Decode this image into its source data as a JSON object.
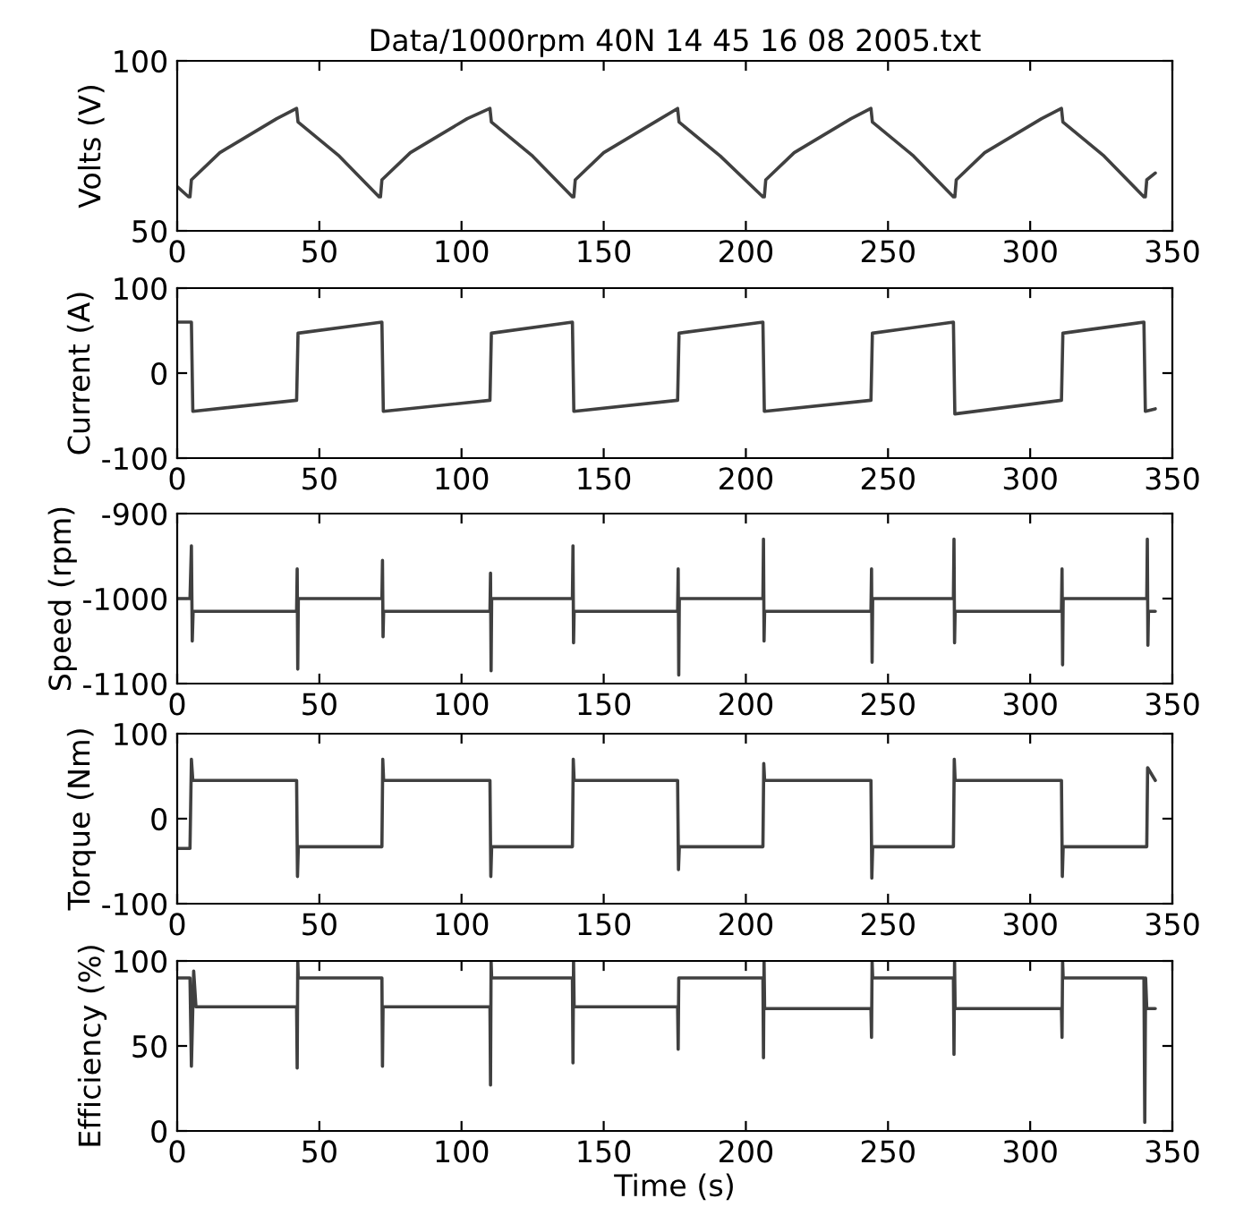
{
  "chart_data": [
    {
      "type": "line",
      "title": "Data/1000rpm 40N 14 45 16 08 2005.txt",
      "ylabel": "Volts (V)",
      "xlim": [
        0,
        350
      ],
      "ylim": [
        50,
        100
      ],
      "xticks": [
        0,
        50,
        100,
        150,
        200,
        250,
        300,
        350
      ],
      "yticks": [
        50,
        100
      ],
      "line_style": "solid",
      "series": [
        {
          "color": "#404040",
          "x": [
            0,
            4,
            4.5,
            5,
            15,
            25,
            35,
            42,
            42.5,
            57,
            71,
            71.5,
            72,
            82,
            92,
            102,
            110,
            110.5,
            125,
            139,
            139.5,
            140,
            150,
            160,
            170,
            176,
            176.5,
            191,
            206,
            206.5,
            207,
            217,
            227,
            237,
            244,
            244.5,
            259,
            273,
            273.5,
            274,
            284,
            294,
            304,
            311,
            311.5,
            326,
            340,
            340.5,
            341,
            344
          ],
          "values": [
            63,
            60,
            60,
            65,
            73,
            78,
            83,
            86,
            82,
            72,
            60,
            60,
            65,
            73,
            78,
            83,
            86,
            82,
            72,
            60,
            60,
            65,
            73,
            78,
            83,
            86,
            82,
            72,
            60,
            60,
            65,
            73,
            78,
            83,
            86,
            82,
            72,
            60,
            60,
            65,
            73,
            78,
            83,
            86,
            82,
            72,
            60,
            60,
            65,
            67
          ]
        }
      ]
    },
    {
      "type": "line",
      "ylabel": "Current (A)",
      "xlim": [
        0,
        350
      ],
      "ylim": [
        -100,
        100
      ],
      "xticks": [
        0,
        50,
        100,
        150,
        200,
        250,
        300,
        350
      ],
      "yticks": [
        -100,
        0,
        100
      ],
      "line_style": "solid",
      "series": [
        {
          "color": "#404040",
          "x": [
            0,
            5,
            5.5,
            42,
            42.5,
            72,
            72.5,
            110,
            110.5,
            139,
            139.5,
            176,
            176.5,
            206,
            206.5,
            244,
            244.5,
            273,
            273.5,
            311,
            311.5,
            340,
            340.5,
            344
          ],
          "values": [
            60,
            60,
            -45,
            -32,
            47,
            60,
            -45,
            -32,
            47,
            60,
            -45,
            -32,
            47,
            60,
            -45,
            -32,
            47,
            60,
            -48,
            -32,
            47,
            60,
            -45,
            -42
          ]
        }
      ]
    },
    {
      "type": "line",
      "ylabel": "Speed (rpm)",
      "xlim": [
        0,
        350
      ],
      "ylim": [
        -1100,
        -900
      ],
      "xticks": [
        0,
        50,
        100,
        150,
        200,
        250,
        300,
        350
      ],
      "yticks": [
        -1100,
        -1000,
        -900
      ],
      "line_style": "solid",
      "series": [
        {
          "color": "#404040",
          "x": [
            0,
            4.5,
            5,
            5.3,
            5.6,
            42,
            42.2,
            42.4,
            42.6,
            72,
            72.2,
            72.4,
            72.6,
            110,
            110.2,
            110.4,
            110.6,
            139,
            139.2,
            139.4,
            139.6,
            176,
            176.2,
            176.4,
            176.6,
            206,
            206.2,
            206.4,
            206.6,
            244,
            244.2,
            244.4,
            244.6,
            273,
            273.2,
            273.4,
            273.6,
            311,
            311.2,
            311.4,
            311.6,
            341,
            341.2,
            341.4,
            341.6,
            344
          ],
          "values": [
            -1000,
            -1000,
            -938,
            -1050,
            -1015,
            -1015,
            -965,
            -1083,
            -1000,
            -1000,
            -955,
            -1045,
            -1015,
            -1015,
            -970,
            -1085,
            -1000,
            -1000,
            -938,
            -1052,
            -1015,
            -1015,
            -965,
            -1090,
            -1000,
            -1000,
            -930,
            -1050,
            -1015,
            -1015,
            -965,
            -1075,
            -1000,
            -1000,
            -930,
            -1052,
            -1015,
            -1015,
            -965,
            -1078,
            -1000,
            -1000,
            -930,
            -1055,
            -1015,
            -1015
          ]
        }
      ]
    },
    {
      "type": "line",
      "ylabel": "Torque (Nm)",
      "xlim": [
        0,
        350
      ],
      "ylim": [
        -100,
        100
      ],
      "xticks": [
        0,
        50,
        100,
        150,
        200,
        250,
        300,
        350
      ],
      "yticks": [
        -100,
        0,
        100
      ],
      "line_style": "solid",
      "series": [
        {
          "color": "#404040",
          "x": [
            0,
            4.5,
            5,
            5.5,
            42,
            42.3,
            42.6,
            72,
            72.3,
            72.6,
            110,
            110.3,
            110.6,
            139,
            139.3,
            139.6,
            176,
            176.3,
            176.6,
            206,
            206.3,
            206.6,
            244,
            244.3,
            244.6,
            273,
            273.3,
            273.6,
            311,
            311.3,
            311.6,
            341,
            341.3,
            344
          ],
          "values": [
            -35,
            -35,
            70,
            45,
            45,
            -68,
            -33,
            -33,
            70,
            45,
            45,
            -68,
            -33,
            -33,
            70,
            45,
            45,
            -60,
            -33,
            -33,
            65,
            45,
            45,
            -70,
            -33,
            -33,
            70,
            45,
            45,
            -68,
            -33,
            -33,
            60,
            45
          ]
        }
      ]
    },
    {
      "type": "line",
      "ylabel": "Efficiency (%)",
      "xlabel": "Time (s)",
      "xlim": [
        0,
        350
      ],
      "ylim": [
        0,
        100
      ],
      "xticks": [
        0,
        50,
        100,
        150,
        200,
        250,
        300,
        350
      ],
      "yticks": [
        0,
        50,
        100
      ],
      "line_style": "solid",
      "series": [
        {
          "color": "#404040",
          "x": [
            0,
            4.5,
            5,
            5.8,
            6.6,
            42,
            42.2,
            42.4,
            42.6,
            72,
            72.2,
            72.4,
            110,
            110.2,
            110.4,
            110.6,
            139,
            139.2,
            139.4,
            139.6,
            176,
            176.2,
            176.4,
            206,
            206.2,
            206.4,
            206.6,
            244,
            244.2,
            244.4,
            244.6,
            273,
            273.2,
            273.4,
            273.6,
            311,
            311.2,
            311.4,
            311.6,
            340,
            340.3,
            340.6,
            341,
            344
          ],
          "values": [
            90,
            90,
            38,
            94,
            73,
            73,
            37,
            100,
            90,
            90,
            38,
            73,
            73,
            27,
            100,
            90,
            90,
            40,
            100,
            73,
            73,
            48,
            90,
            90,
            43,
            100,
            72,
            72,
            55,
            100,
            90,
            90,
            45,
            100,
            72,
            72,
            55,
            100,
            90,
            90,
            5,
            90,
            72,
            72
          ]
        }
      ]
    }
  ]
}
